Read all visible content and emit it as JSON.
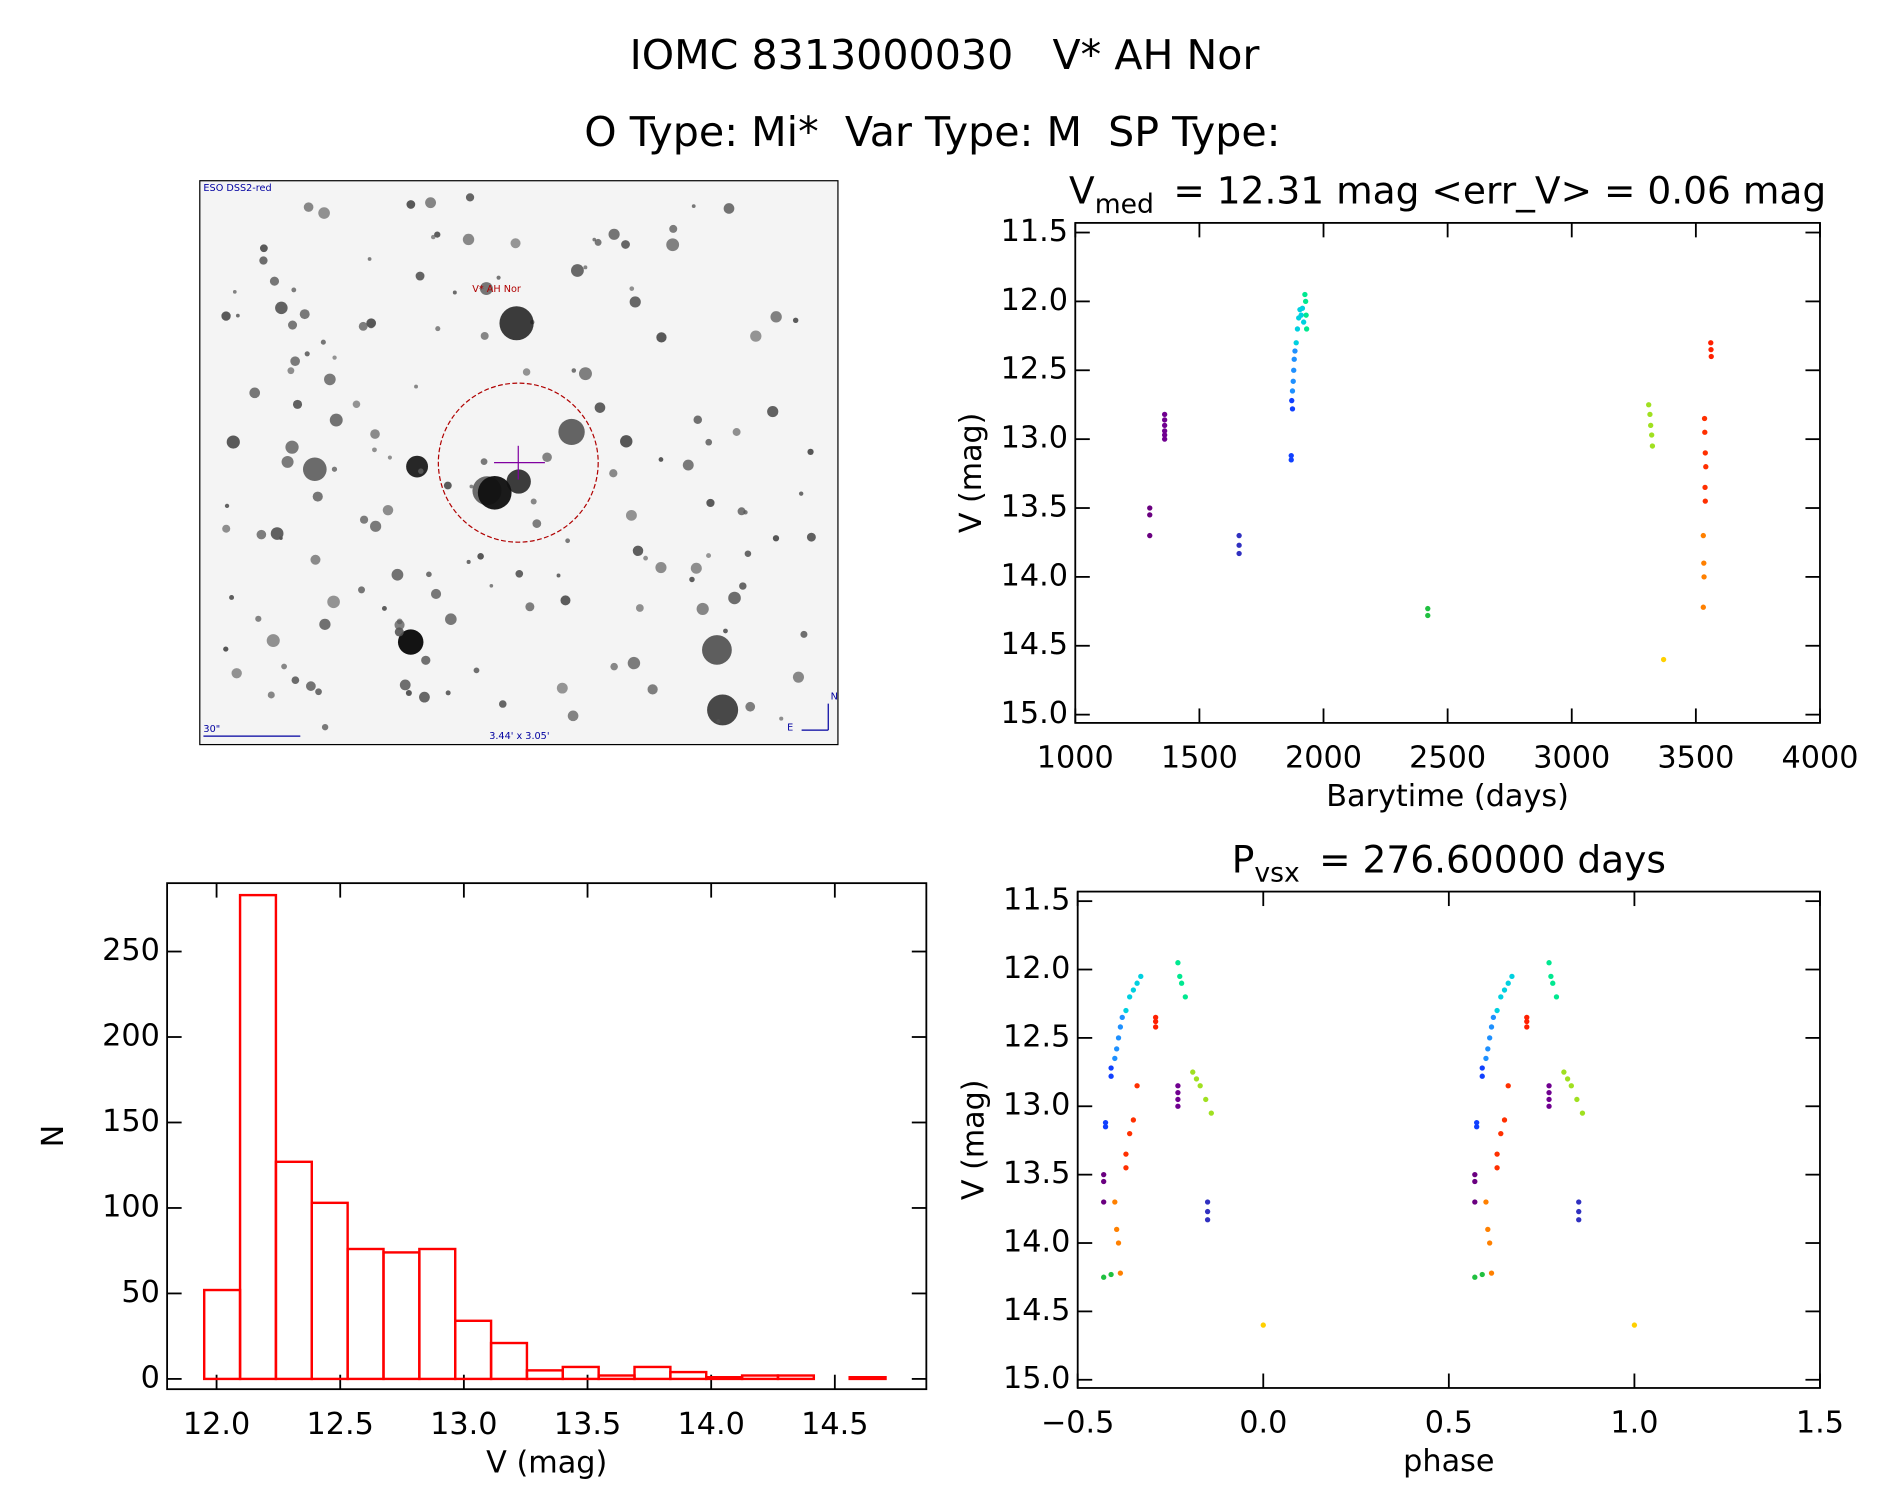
{
  "header": {
    "line1": "IOMC 8313000030   V* AH Nor",
    "line2": "O Type: Mi*  Var Type: M  SP Type:"
  },
  "image_panel": {
    "survey": "ESO DSS2-red",
    "target": "V* AH Nor",
    "scale": "30\"",
    "size": "3.44' x 3.05'",
    "north": "N",
    "east": "E"
  },
  "chart_data": [
    {
      "type": "scatter",
      "title": {
        "main": "V",
        "sub": "med",
        "rest": "= 12.31 mag <err_V> = 0.06 mag"
      },
      "xlabel": "Barytime (days)",
      "ylabel": "V (mag)",
      "xlim": [
        1000,
        4000
      ],
      "ylim": [
        11.43,
        15.06
      ],
      "y_reversed": true,
      "xticks": [
        1000,
        1500,
        2000,
        2500,
        3000,
        3500,
        4000
      ],
      "yticks": [
        11.5,
        {
          "value": 12,
          "label": "12.0"
        },
        12.5,
        {
          "value": 13,
          "label": "13.0"
        },
        13.5,
        {
          "value": 14,
          "label": "14.0"
        },
        14.5,
        {
          "value": 15,
          "label": "15.0"
        }
      ],
      "series": [
        {
          "color": "#6a0080",
          "x": [
            1300,
            1300,
            1300
          ],
          "values": [
            13.5,
            13.55,
            13.7
          ]
        },
        {
          "color": "#700090",
          "x": [
            1360,
            1360,
            1360,
            1360,
            1360,
            1360
          ],
          "values": [
            12.82,
            12.86,
            12.9,
            12.94,
            12.97,
            13.0
          ]
        },
        {
          "color": "#3030c0",
          "x": [
            1660,
            1660,
            1660
          ],
          "values": [
            13.7,
            13.77,
            13.83
          ]
        },
        {
          "color": "#1040ff",
          "x": [
            1870,
            1870,
            1875,
            1872
          ],
          "values": [
            13.12,
            13.15,
            12.78,
            12.72
          ]
        },
        {
          "color": "#1e90ff",
          "x": [
            1875,
            1878,
            1880,
            1882,
            1885
          ],
          "values": [
            12.65,
            12.58,
            12.5,
            12.42,
            12.36
          ]
        },
        {
          "color": "#00d0e0",
          "x": [
            1890,
            1895,
            1900,
            1905,
            1910,
            1915,
            1920
          ],
          "values": [
            12.3,
            12.2,
            12.12,
            12.06,
            12.1,
            12.05,
            12.15
          ]
        },
        {
          "color": "#00e890",
          "x": [
            1925,
            1928,
            1930,
            1932
          ],
          "values": [
            11.95,
            12.0,
            12.1,
            12.2
          ]
        },
        {
          "color": "#20c040",
          "x": [
            2420,
            2420
          ],
          "values": [
            14.23,
            14.28
          ]
        },
        {
          "color": "#a0e020",
          "x": [
            3310,
            3315,
            3318,
            3322,
            3325
          ],
          "values": [
            12.75,
            12.82,
            12.9,
            12.97,
            13.05
          ]
        },
        {
          "color": "#ffd000",
          "x": [
            3370
          ],
          "values": [
            14.6
          ]
        },
        {
          "color": "#ff8000",
          "x": [
            3530,
            3532,
            3533,
            3530
          ],
          "values": [
            13.7,
            13.9,
            14.0,
            14.22
          ]
        },
        {
          "color": "#ff3000",
          "x": [
            3535,
            3536,
            3538,
            3540,
            3537,
            3538
          ],
          "values": [
            12.85,
            12.95,
            13.1,
            13.2,
            13.35,
            13.45
          ]
        },
        {
          "color": "#ff2000",
          "x": [
            3560,
            3561,
            3562
          ],
          "values": [
            12.3,
            12.35,
            12.4
          ]
        }
      ]
    },
    {
      "type": "scatter",
      "title": {
        "main": "P",
        "sub": "vsx",
        "rest": "= 276.60000 days"
      },
      "xlabel": "phase",
      "ylabel": "V (mag)",
      "xlim": [
        -0.5,
        1.5
      ],
      "ylim": [
        11.43,
        15.06
      ],
      "y_reversed": true,
      "xticks": [
        {
          "value": -0.5,
          "label": "−0.5"
        },
        {
          "value": 0,
          "label": "0.0"
        },
        0.5,
        {
          "value": 1,
          "label": "1.0"
        },
        1.5
      ],
      "yticks": [
        11.5,
        {
          "value": 12,
          "label": "12.0"
        },
        12.5,
        {
          "value": 13,
          "label": "13.0"
        },
        13.5,
        {
          "value": 14,
          "label": "14.0"
        },
        14.5,
        {
          "value": 15,
          "label": "15.0"
        }
      ],
      "series": [
        {
          "color": "#6a0080",
          "x": [
            -0.43,
            -0.43,
            -0.43,
            0.57,
            0.57,
            0.57
          ],
          "values": [
            13.5,
            13.55,
            13.7,
            13.5,
            13.55,
            13.7
          ]
        },
        {
          "color": "#700090",
          "x": [
            -0.23,
            -0.23,
            -0.23,
            -0.23,
            0.77,
            0.77,
            0.77,
            0.77
          ],
          "values": [
            12.85,
            12.9,
            12.95,
            13.0,
            12.85,
            12.9,
            12.95,
            13.0
          ]
        },
        {
          "color": "#3030c0",
          "x": [
            -0.15,
            -0.15,
            -0.15,
            0.85,
            0.85,
            0.85
          ],
          "values": [
            13.7,
            13.77,
            13.83,
            13.7,
            13.77,
            13.83
          ]
        },
        {
          "color": "#1040ff",
          "x": [
            -0.425,
            -0.425,
            -0.41,
            -0.41,
            0.575,
            0.575,
            0.59,
            0.59
          ],
          "values": [
            13.12,
            13.15,
            12.72,
            12.78,
            13.12,
            13.15,
            12.72,
            12.78
          ]
        },
        {
          "color": "#1e90ff",
          "x": [
            -0.4,
            -0.395,
            -0.39,
            -0.385,
            -0.38,
            0.6,
            0.605,
            0.61,
            0.615,
            0.62
          ],
          "values": [
            12.65,
            12.58,
            12.5,
            12.42,
            12.35,
            12.65,
            12.58,
            12.5,
            12.42,
            12.35
          ]
        },
        {
          "color": "#00d0e0",
          "x": [
            -0.37,
            -0.36,
            -0.35,
            -0.34,
            -0.33,
            0.63,
            0.64,
            0.65,
            0.66,
            0.67
          ],
          "values": [
            12.3,
            12.2,
            12.15,
            12.1,
            12.05,
            12.3,
            12.2,
            12.15,
            12.1,
            12.05
          ]
        },
        {
          "color": "#00e890",
          "x": [
            -0.23,
            -0.225,
            -0.22,
            -0.21,
            0.77,
            0.775,
            0.78,
            0.79
          ],
          "values": [
            11.95,
            12.05,
            12.1,
            12.2,
            11.95,
            12.05,
            12.1,
            12.2
          ]
        },
        {
          "color": "#20c040",
          "x": [
            -0.43,
            -0.41,
            0.57,
            0.59
          ],
          "values": [
            14.25,
            14.23,
            14.25,
            14.23
          ]
        },
        {
          "color": "#a0e020",
          "x": [
            -0.19,
            -0.18,
            -0.17,
            -0.155,
            -0.14,
            0.81,
            0.82,
            0.83,
            0.845,
            0.86
          ],
          "values": [
            12.75,
            12.8,
            12.85,
            12.95,
            13.05,
            12.75,
            12.8,
            12.85,
            12.95,
            13.05
          ]
        },
        {
          "color": "#ffd000",
          "x": [
            0.0,
            1.0
          ],
          "values": [
            14.6,
            14.6
          ]
        },
        {
          "color": "#ff8000",
          "x": [
            -0.4,
            -0.395,
            -0.39,
            -0.385,
            0.6,
            0.605,
            0.61,
            0.615
          ],
          "values": [
            13.7,
            13.9,
            14.0,
            14.22,
            13.7,
            13.9,
            14.0,
            14.22
          ]
        },
        {
          "color": "#ff3000",
          "x": [
            -0.34,
            -0.35,
            -0.36,
            -0.37,
            -0.37,
            0.66,
            0.65,
            0.64,
            0.63,
            0.63
          ],
          "values": [
            12.85,
            13.1,
            13.2,
            13.35,
            13.45,
            12.85,
            13.1,
            13.2,
            13.35,
            13.45
          ]
        },
        {
          "color": "#ff2000",
          "x": [
            -0.29,
            -0.29,
            -0.29,
            0.71,
            0.71,
            0.71
          ],
          "values": [
            12.35,
            12.38,
            12.42,
            12.35,
            12.38,
            12.42
          ]
        }
      ]
    },
    {
      "type": "histogram",
      "xlabel": "V (mag)",
      "ylabel": "N",
      "color": "#ff0000",
      "bins": [
        11.95,
        12.095,
        12.24,
        12.385,
        12.53,
        12.675,
        12.82,
        12.965,
        13.11,
        13.255,
        13.4,
        13.545,
        13.69,
        13.835,
        13.98,
        14.125,
        14.27,
        14.415,
        14.56,
        14.705
      ],
      "values": [
        52,
        283,
        127,
        103,
        76,
        74,
        76,
        34,
        21,
        5,
        7,
        2,
        7,
        4,
        1,
        2,
        2,
        0,
        1
      ],
      "xlim": [
        11.8,
        14.87
      ],
      "ylim": [
        -6,
        290
      ],
      "xticks": [
        {
          "value": 12,
          "label": "12.0"
        },
        12.5,
        {
          "value": 13,
          "label": "13.0"
        },
        13.5,
        {
          "value": 14,
          "label": "14.0"
        },
        14.5
      ],
      "yticks": [
        0,
        50,
        100,
        150,
        200,
        250
      ]
    }
  ]
}
